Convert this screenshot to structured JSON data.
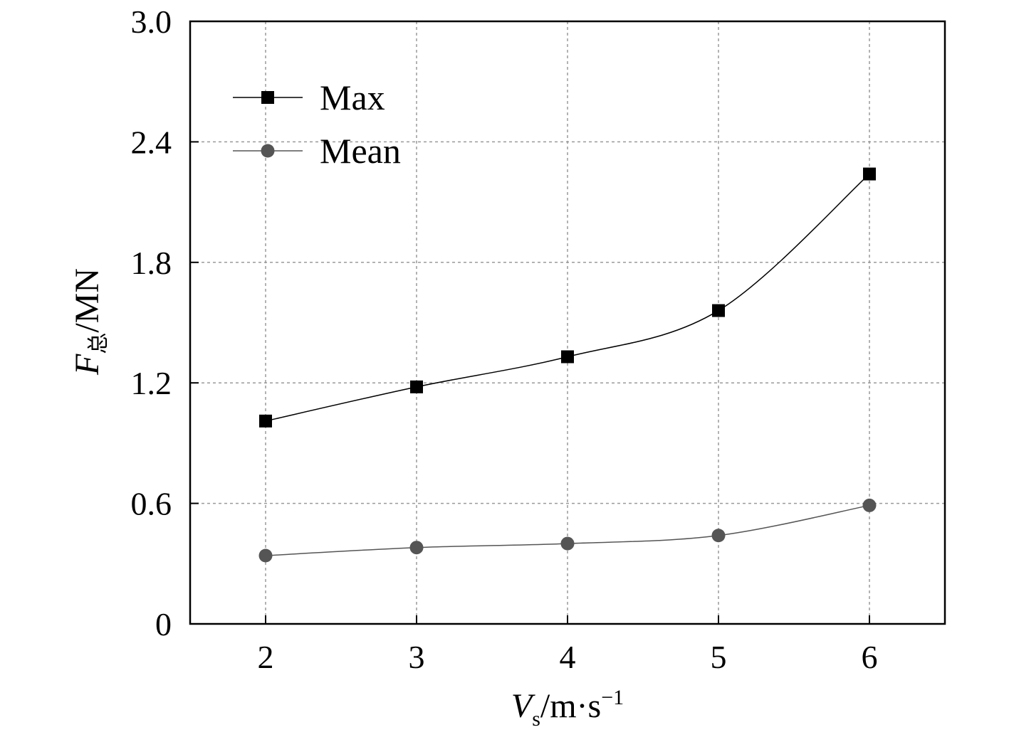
{
  "chart_data": {
    "type": "line",
    "title": "",
    "x": [
      2,
      3,
      4,
      5,
      6
    ],
    "xticks": [
      "2",
      "3",
      "4",
      "5",
      "6"
    ],
    "xlim": [
      1.5,
      6.5
    ],
    "yticks": [
      "0",
      "0.6",
      "1.2",
      "1.8",
      "2.4",
      "3.0"
    ],
    "ytick_values": [
      0,
      0.6,
      1.2,
      1.8,
      2.4,
      3.0
    ],
    "ylim": [
      0,
      3.0
    ],
    "grid": true,
    "legend_position": "top-left",
    "xlabel": {
      "main": "V",
      "subscript": "s",
      "unit": "/m·s",
      "superscript": "−1"
    },
    "ylabel": {
      "main": "F",
      "subscript": "总",
      "unit": "/MN"
    },
    "series": [
      {
        "name": "Max",
        "marker": "square",
        "color": "#000000",
        "values": [
          1.01,
          1.18,
          1.33,
          1.56,
          2.24
        ]
      },
      {
        "name": "Mean",
        "marker": "circle",
        "color": "#555555",
        "values": [
          0.34,
          0.38,
          0.4,
          0.44,
          0.59
        ]
      }
    ]
  }
}
